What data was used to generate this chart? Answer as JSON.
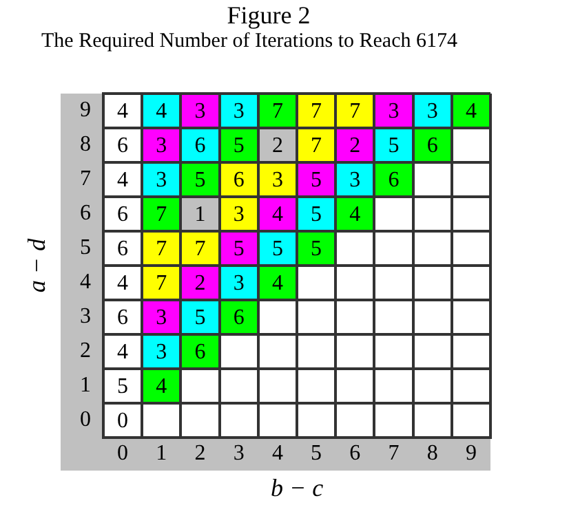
{
  "chart_data": {
    "type": "heatmap",
    "title": "Figure 2",
    "subtitle": "The Required Number of Iterations to Reach 6174",
    "xlabel": "b − c",
    "ylabel": "a − d",
    "grid": true,
    "data_labels": true,
    "categories": [
      "0",
      "1",
      "2",
      "3",
      "4",
      "5",
      "6",
      "7",
      "8",
      "9"
    ],
    "y_categories": [
      "9",
      "8",
      "7",
      "6",
      "5",
      "4",
      "3",
      "2",
      "1",
      "0"
    ],
    "cells": [
      [
        4,
        4,
        3,
        3,
        7,
        7,
        7,
        3,
        3,
        4
      ],
      [
        6,
        3,
        6,
        5,
        2,
        7,
        2,
        5,
        6,
        null
      ],
      [
        4,
        3,
        5,
        6,
        3,
        5,
        3,
        6,
        null,
        null
      ],
      [
        6,
        7,
        1,
        3,
        4,
        5,
        4,
        null,
        null,
        null
      ],
      [
        6,
        7,
        7,
        5,
        5,
        5,
        null,
        null,
        null,
        null
      ],
      [
        4,
        7,
        2,
        3,
        4,
        null,
        null,
        null,
        null,
        null
      ],
      [
        6,
        3,
        5,
        6,
        null,
        null,
        null,
        null,
        null,
        null
      ],
      [
        4,
        3,
        6,
        null,
        null,
        null,
        null,
        null,
        null,
        null
      ],
      [
        5,
        4,
        null,
        null,
        null,
        null,
        null,
        null,
        null,
        null
      ],
      [
        0,
        null,
        null,
        null,
        null,
        null,
        null,
        null,
        null,
        null
      ]
    ],
    "colors": [
      [
        "#ffffff",
        "#00ffff",
        "#ff00ff",
        "#00ffff",
        "#00ff00",
        "#ffff00",
        "#ffff00",
        "#ff00ff",
        "#00ffff",
        "#00ff00"
      ],
      [
        "#ffffff",
        "#ff00ff",
        "#00ffff",
        "#00ff00",
        "#c0c0c0",
        "#ffff00",
        "#ff00ff",
        "#00ffff",
        "#00ff00",
        null
      ],
      [
        "#ffffff",
        "#00ffff",
        "#00ff00",
        "#ffff00",
        "#ffff00",
        "#ff00ff",
        "#00ffff",
        "#00ff00",
        null,
        null
      ],
      [
        "#ffffff",
        "#00ff00",
        "#c0c0c0",
        "#ffff00",
        "#ff00ff",
        "#00ffff",
        "#00ff00",
        null,
        null,
        null
      ],
      [
        "#ffffff",
        "#ffff00",
        "#ffff00",
        "#ff00ff",
        "#00ffff",
        "#00ff00",
        null,
        null,
        null,
        null
      ],
      [
        "#ffffff",
        "#ffff00",
        "#ff00ff",
        "#00ffff",
        "#00ff00",
        null,
        null,
        null,
        null,
        null
      ],
      [
        "#ffffff",
        "#ff00ff",
        "#00ffff",
        "#00ff00",
        null,
        null,
        null,
        null,
        null,
        null
      ],
      [
        "#ffffff",
        "#00ffff",
        "#00ff00",
        null,
        null,
        null,
        null,
        null,
        null,
        null
      ],
      [
        "#ffffff",
        "#00ff00",
        null,
        null,
        null,
        null,
        null,
        null,
        null,
        null
      ],
      [
        "#ffffff",
        null,
        null,
        null,
        null,
        null,
        null,
        null,
        null,
        null
      ]
    ]
  }
}
